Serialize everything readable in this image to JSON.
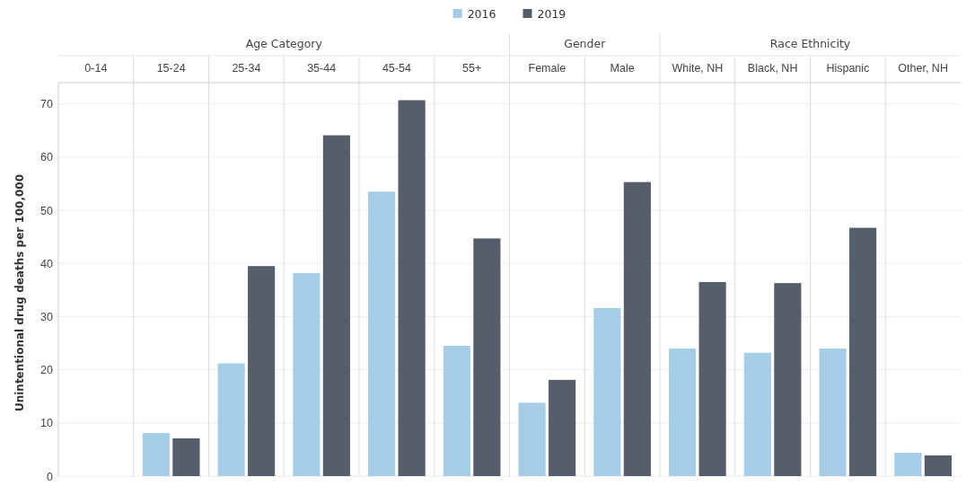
{
  "chart_data": {
    "type": "bar",
    "ylabel": "Unintentional drug deaths per 100,000",
    "categories": [
      "0-14",
      "15-24",
      "25-34",
      "35-44",
      "45-54",
      "55+",
      "Female",
      "Male",
      "White, NH",
      "Black, NH",
      "Hispanic",
      "Other, NH"
    ],
    "series": [
      {
        "name": "2016",
        "color": "#a6cde8",
        "values": [
          null,
          8.1,
          21.2,
          38.2,
          53.5,
          24.5,
          13.8,
          31.6,
          24.0,
          23.2,
          24.0,
          4.4
        ]
      },
      {
        "name": "2019",
        "color": "#565e6c",
        "values": [
          null,
          7.1,
          39.5,
          64.1,
          70.7,
          44.7,
          18.1,
          55.3,
          36.5,
          36.3,
          46.7,
          3.9
        ]
      }
    ],
    "annotations": [
      "Age Category",
      "Gender",
      "Race Ethnicity"
    ],
    "ylim": [
      0,
      74
    ],
    "yticks": [
      0,
      10,
      20,
      30,
      40,
      50,
      60,
      70
    ],
    "grid": "y",
    "legend": "top"
  }
}
